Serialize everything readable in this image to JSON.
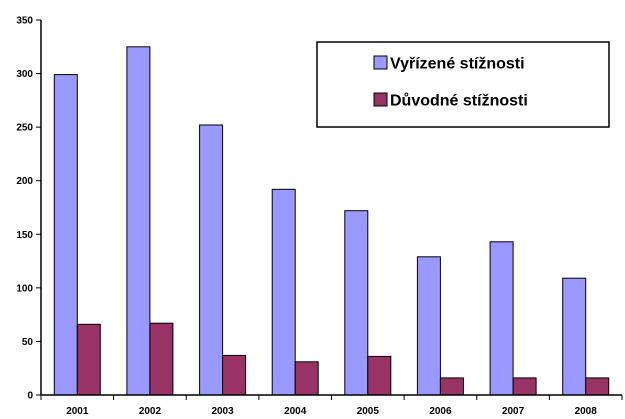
{
  "chart_data": {
    "type": "bar",
    "categories": [
      "2001",
      "2002",
      "2003",
      "2004",
      "2005",
      "2006",
      "2007",
      "2008"
    ],
    "series": [
      {
        "name": "Vyřízené stížnosti",
        "color": "#9999ff",
        "values": [
          299,
          325,
          252,
          192,
          172,
          129,
          143,
          109
        ]
      },
      {
        "name": "Důvodné stížnosti",
        "color": "#993366",
        "values": [
          66,
          67,
          37,
          31,
          36,
          16,
          16,
          16
        ]
      }
    ],
    "title": "",
    "xlabel": "",
    "ylabel": "",
    "ylim": [
      0,
      350
    ],
    "yticks": [
      0,
      50,
      100,
      150,
      200,
      250,
      300,
      350
    ],
    "grid": false,
    "legend_position": "top-right"
  }
}
